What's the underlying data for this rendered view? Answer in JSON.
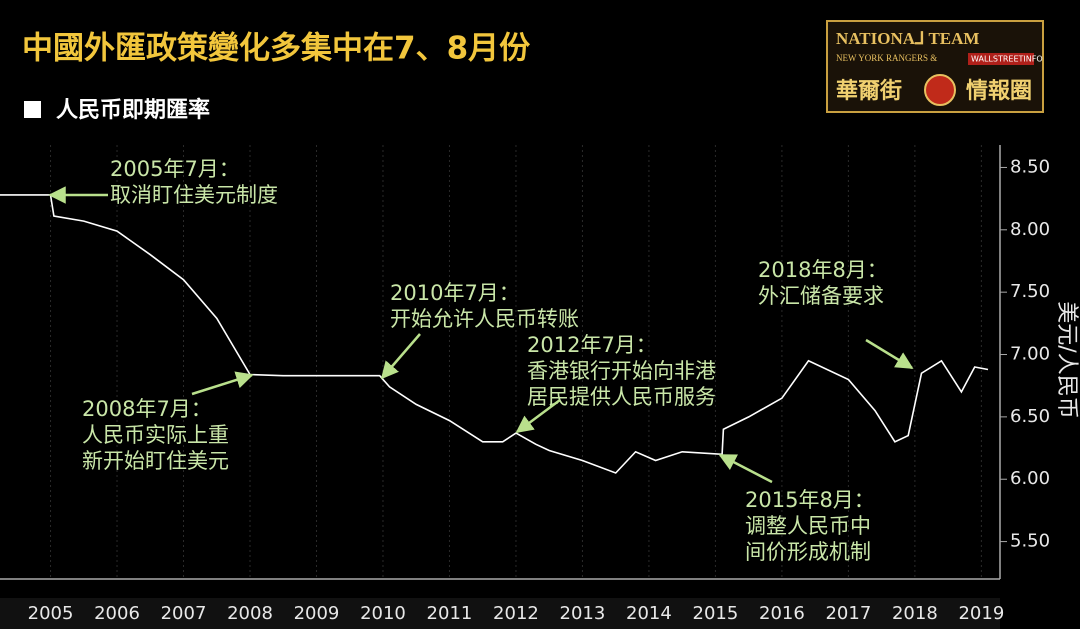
{
  "chart_data": {
    "type": "line",
    "title": "中國外匯政策變化多集中在7、8月份",
    "y_label": "美元/人民币",
    "logo": {
      "line1": "NATIONA⅃ TEAM",
      "line2": "NEW YORK RANGERS &",
      "line3": "WALLSTREETINFO",
      "left": "華爾街",
      "right": "情報圈"
    },
    "x": [
      2004.74,
      2005.5,
      2005.55,
      2006.0,
      2006.5,
      2007.0,
      2007.5,
      2008.0,
      2008.5,
      2009.0,
      2009.5,
      2010.0,
      2010.45,
      2010.6,
      2011.0,
      2011.5,
      2012.0,
      2012.3,
      2012.5,
      2012.8,
      2013.0,
      2013.5,
      2014.0,
      2014.3,
      2014.6,
      2015.0,
      2015.6,
      2015.62,
      2016.0,
      2016.5,
      2016.9,
      2017.5,
      2017.9,
      2018.2,
      2018.4,
      2018.6,
      2018.9,
      2019.2,
      2019.4,
      2019.6
    ],
    "series": [
      {
        "name": "人民币即期匯率",
        "color": "#ffffff",
        "values": [
          8.28,
          8.28,
          8.11,
          8.07,
          7.99,
          7.8,
          7.6,
          7.29,
          6.84,
          6.83,
          6.83,
          6.83,
          6.83,
          6.74,
          6.6,
          6.47,
          6.3,
          6.3,
          6.37,
          6.28,
          6.23,
          6.15,
          6.05,
          6.22,
          6.15,
          6.22,
          6.2,
          6.4,
          6.5,
          6.65,
          6.95,
          6.8,
          6.55,
          6.3,
          6.35,
          6.85,
          6.95,
          6.7,
          6.9,
          6.88
        ]
      }
    ],
    "xlim": [
      2004.74,
      2019.78
    ],
    "xticks": [
      {
        "value": 2005.5,
        "label": "2005"
      },
      {
        "value": 2006.5,
        "label": "2006"
      },
      {
        "value": 2007.5,
        "label": "2007"
      },
      {
        "value": 2008.5,
        "label": "2008"
      },
      {
        "value": 2009.5,
        "label": "2009"
      },
      {
        "value": 2010.5,
        "label": "2010"
      },
      {
        "value": 2011.5,
        "label": "2011"
      },
      {
        "value": 2012.5,
        "label": "2012"
      },
      {
        "value": 2013.5,
        "label": "2013"
      },
      {
        "value": 2014.5,
        "label": "2014"
      },
      {
        "value": 2015.5,
        "label": "2015"
      },
      {
        "value": 2016.5,
        "label": "2016"
      },
      {
        "value": 2017.5,
        "label": "2017"
      },
      {
        "value": 2018.5,
        "label": "2018"
      },
      {
        "value": 2019.5,
        "label": "2019"
      }
    ],
    "ylim": [
      5.2,
      8.68
    ],
    "yticks": [
      {
        "value": 5.5,
        "label": "5.50"
      },
      {
        "value": 6.0,
        "label": "6.00"
      },
      {
        "value": 6.5,
        "label": "6.50"
      },
      {
        "value": 7.0,
        "label": "7.00"
      },
      {
        "value": 7.5,
        "label": "7.50"
      },
      {
        "value": 8.0,
        "label": "8.00"
      },
      {
        "value": 8.5,
        "label": "8.50"
      }
    ],
    "annotations": [
      {
        "lines": [
          "2005年7月：",
          "取消盯住美元制度"
        ]
      },
      {
        "lines": [
          "2008年7月：",
          "人民币实际上重",
          "新开始盯住美元"
        ]
      },
      {
        "lines": [
          "2010年7月：",
          "开始允许人民币转账"
        ]
      },
      {
        "lines": [
          "2012年7月：",
          "香港银行开始向非港",
          "居民提供人民币服务"
        ]
      },
      {
        "lines": [
          "2018年8月：",
          "外汇储备要求"
        ]
      },
      {
        "lines": [
          "2015年8月：",
          "调整人民币中",
          "间价形成机制"
        ]
      }
    ]
  }
}
